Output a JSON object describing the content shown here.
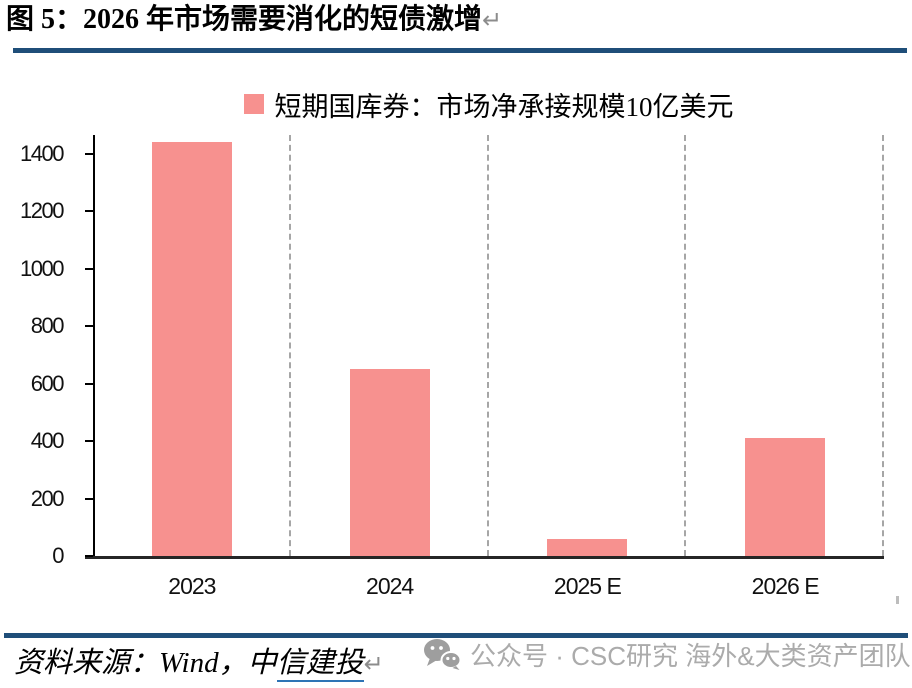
{
  "figure": {
    "title": "图 5：2026 年市场需要消化的短债激增",
    "return_mark": "↵"
  },
  "chart_data": {
    "type": "bar",
    "legend": [
      {
        "label": "短期国库券：市场净承接规模10亿美元",
        "color": "#F7918F"
      }
    ],
    "legend_position": "top-center",
    "categories": [
      "2023",
      "2024",
      "2025 E",
      "2026 E"
    ],
    "values": [
      1440,
      650,
      60,
      410
    ],
    "title": "",
    "xlabel": "",
    "ylabel": "",
    "ylim": [
      0,
      1465
    ],
    "yticks": [
      0,
      200,
      400,
      600,
      800,
      1000,
      1200,
      1400
    ],
    "grid": "vertical dashed lines at category boundaries",
    "bar_color": "#F7918F"
  },
  "source_line": {
    "prefix": "资料来源：Wind，",
    "publisher_plain": "中",
    "publisher_underlined": "信建投",
    "return_mark": "↵"
  },
  "watermark": {
    "icon": "wechat-icon",
    "text": "公众号 · CSC研究 海外&大类资产团队"
  },
  "colors": {
    "bar": "#F7918F",
    "rule": "#1F4E79",
    "grid_dash": "#A6A6A6",
    "watermark_text": "#ABABAB",
    "link_underline": "#2E74B5",
    "return_mark": "#8C8C8C"
  }
}
